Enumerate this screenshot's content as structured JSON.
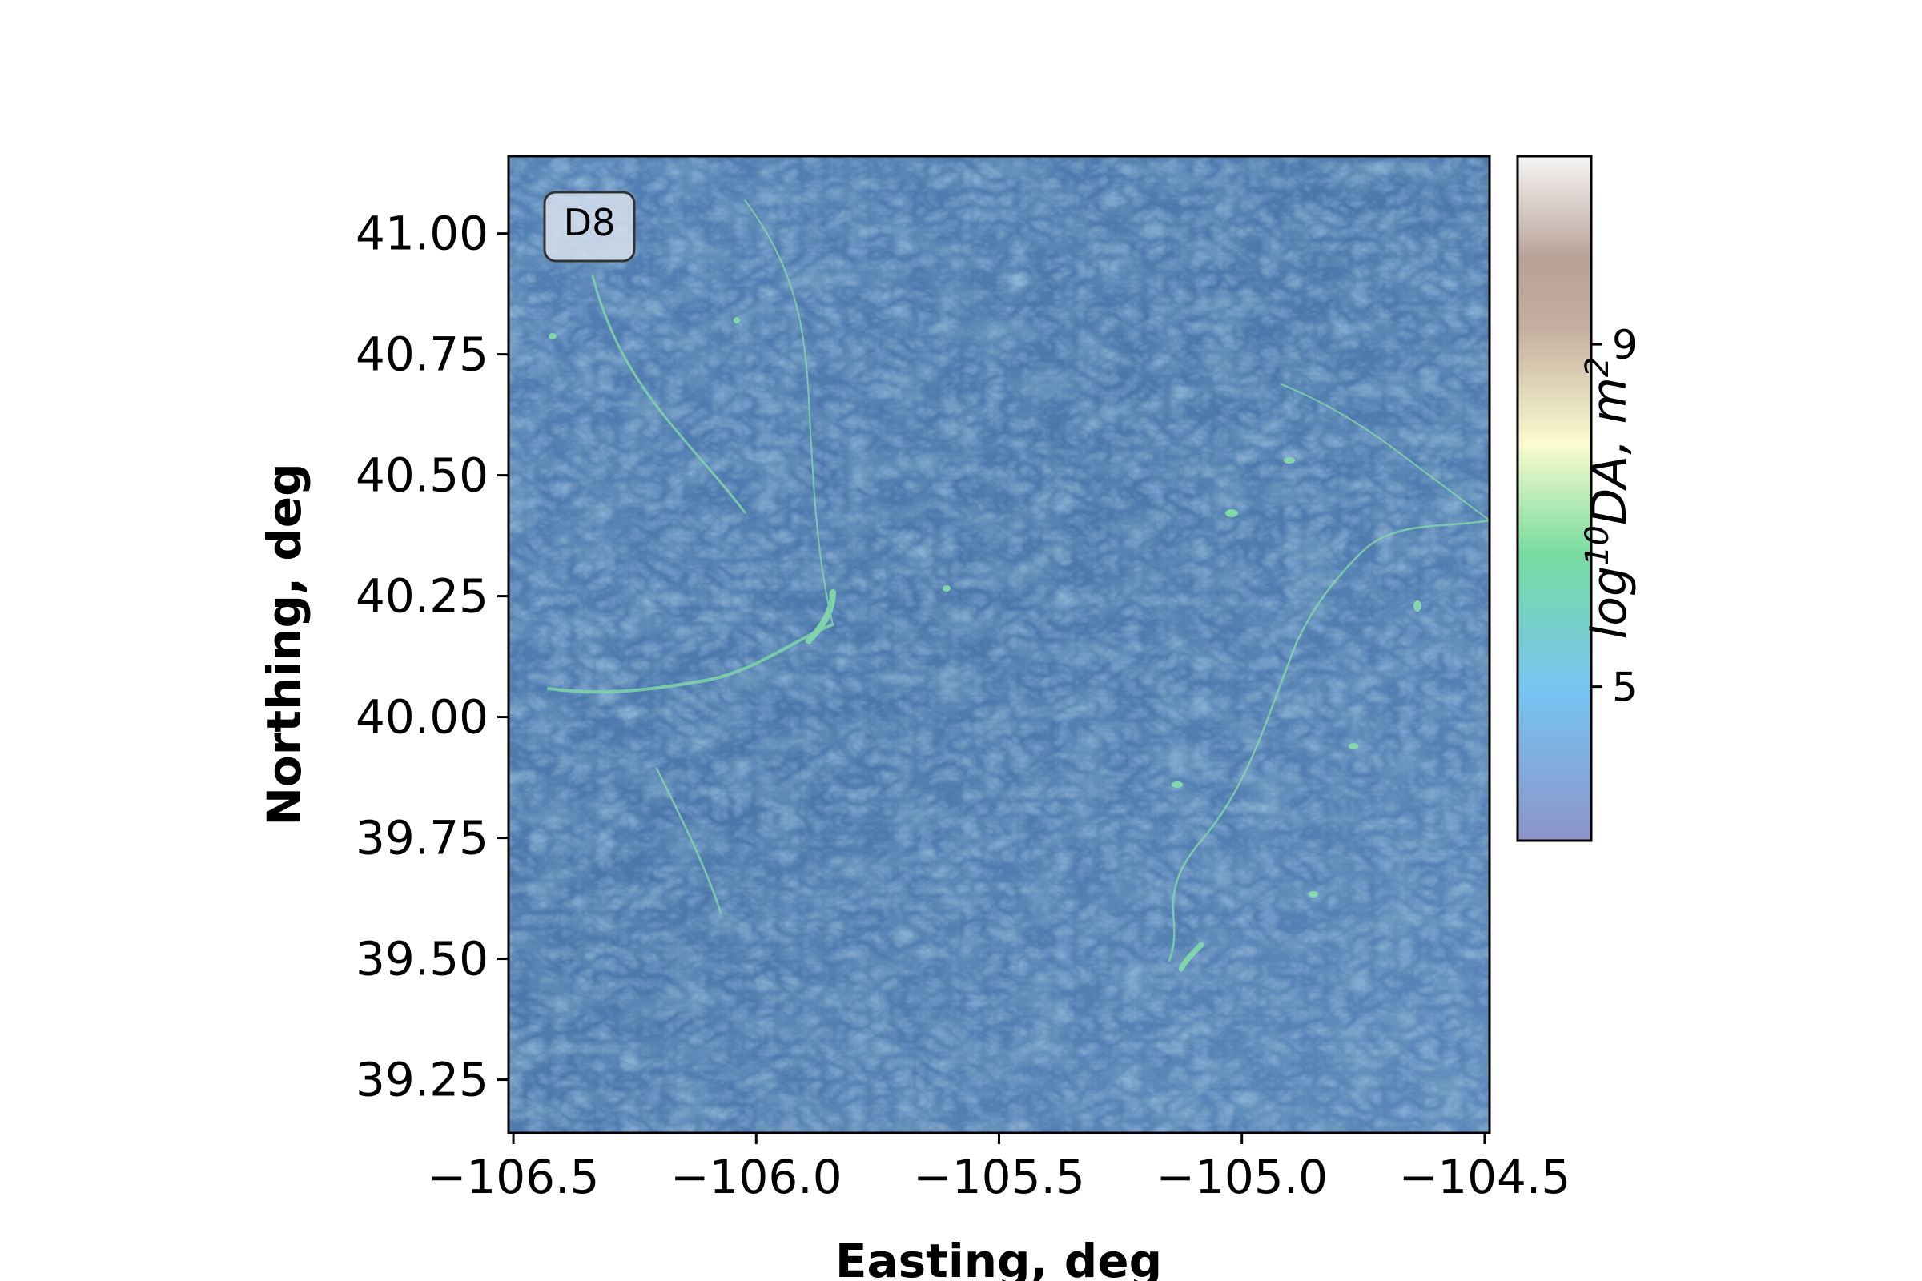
{
  "chart_data": {
    "type": "heatmap",
    "title": "",
    "xlabel": "Easting, deg",
    "ylabel": "Northing, deg",
    "xlim": [
      -106.51,
      -104.49
    ],
    "ylim": [
      39.14,
      41.16
    ],
    "xticks": [
      -106.5,
      -106.0,
      -105.5,
      -105.0,
      -104.5
    ],
    "xtick_labels": [
      "−106.5",
      "−106.0",
      "−105.5",
      "−105.0",
      "−104.5"
    ],
    "yticks": [
      39.25,
      39.5,
      39.75,
      40.0,
      40.25,
      40.5,
      40.75,
      41.0
    ],
    "ytick_labels": [
      "39.25",
      "39.50",
      "39.75",
      "40.00",
      "40.25",
      "40.50",
      "40.75",
      "41.00"
    ],
    "grid": false,
    "annotation": "D8",
    "colorbar": {
      "label": "log10DA, m2",
      "label_parts": [
        "log",
        "10",
        "DA, m",
        "2"
      ],
      "range": [
        3.2,
        11.2
      ],
      "ticks": [
        5,
        9
      ],
      "tick_labels": [
        "5",
        "9"
      ],
      "colors": [
        "#8c94c8",
        "#77c4f2",
        "#78dca0",
        "#fbfbcf",
        "#c4aea0",
        "#b8a296",
        "#f6f6f6"
      ]
    },
    "colormap_background": "#4f7bb0"
  }
}
